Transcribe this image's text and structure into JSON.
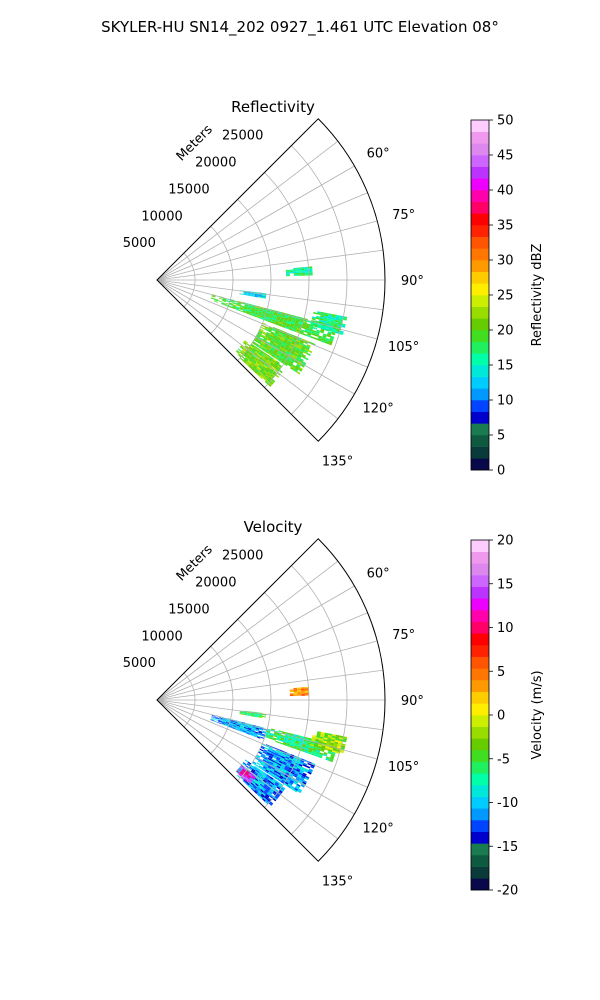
{
  "figure": {
    "suptitle": "SKYLER-HU  SN14_202  0927_1.461 UTC Elevation 08°"
  },
  "chart_data": [
    {
      "type": "heatmap",
      "projection": "polar-sector",
      "title": "Reflectivity",
      "range_label": "Meters",
      "range_ticks": [
        5000,
        10000,
        15000,
        20000,
        25000
      ],
      "range_tick_labels": [
        "5000",
        "10000",
        "15000",
        "20000",
        "25000"
      ],
      "rlim": [
        0,
        30000
      ],
      "azimuth_ticks": [
        60,
        75,
        90,
        105,
        120,
        135
      ],
      "azimuth_tick_labels": [
        "60°",
        "75°",
        "90°",
        "105°",
        "120°",
        "135°"
      ],
      "azimuth_range": [
        45,
        135
      ],
      "grid": true,
      "colorbar": {
        "label": "Reflectivity dBZ",
        "vmin": 0,
        "vmax": 50,
        "ticks": [
          0,
          5,
          10,
          15,
          20,
          25,
          30,
          35,
          40,
          45,
          50
        ],
        "tick_labels": [
          "0",
          "5",
          "10",
          "15",
          "20",
          "25",
          "30",
          "35",
          "40",
          "45",
          "50"
        ],
        "colors": [
          "#08084a",
          "#0a3a3a",
          "#0d5a40",
          "#1a7a50",
          "#0000cc",
          "#0044ff",
          "#0099ff",
          "#00ccff",
          "#00e8d8",
          "#00ffa8",
          "#20f060",
          "#40dd20",
          "#66cc00",
          "#99dd00",
          "#ccee00",
          "#ffee00",
          "#ffcc00",
          "#ff9900",
          "#ff7700",
          "#ff5500",
          "#ff2200",
          "#ff0000",
          "#ff0066",
          "#ff00aa",
          "#ee00ff",
          "#bb33ff",
          "#cc66ff",
          "#dd88ee",
          "#ee99ee",
          "#ffccff"
        ]
      },
      "echo_regions": [
        {
          "r_min": 17000,
          "r_max": 20500,
          "az_min": 85,
          "az_max": 88,
          "value": 16
        },
        {
          "r_min": 11000,
          "r_max": 14500,
          "az_min": 97,
          "az_max": 99.5,
          "value": 13
        },
        {
          "r_min": 7500,
          "r_max": 24500,
          "az_min": 104.5,
          "az_max": 110,
          "value": 19
        },
        {
          "r_min": 21000,
          "r_max": 25500,
          "az_min": 101,
          "az_max": 106,
          "value": 17
        },
        {
          "r_min": 15000,
          "r_max": 22500,
          "az_min": 112,
          "az_max": 123,
          "value": 20
        },
        {
          "r_min": 14000,
          "r_max": 20500,
          "az_min": 124,
          "az_max": 133,
          "value": 21
        }
      ]
    },
    {
      "type": "heatmap",
      "projection": "polar-sector",
      "title": "Velocity",
      "range_label": "Meters",
      "range_ticks": [
        5000,
        10000,
        15000,
        20000,
        25000
      ],
      "range_tick_labels": [
        "5000",
        "10000",
        "15000",
        "20000",
        "25000"
      ],
      "rlim": [
        0,
        30000
      ],
      "azimuth_ticks": [
        60,
        75,
        90,
        105,
        120,
        135
      ],
      "azimuth_tick_labels": [
        "60°",
        "75°",
        "90°",
        "105°",
        "120°",
        "135°"
      ],
      "azimuth_range": [
        45,
        135
      ],
      "grid": true,
      "colorbar": {
        "label": "Velocity (m/s)",
        "vmin": -20,
        "vmax": 20,
        "ticks": [
          -20,
          -15,
          -10,
          -5,
          0,
          5,
          10,
          15,
          20
        ],
        "tick_labels": [
          "-20",
          "-15",
          "-10",
          "-5",
          "0",
          "5",
          "10",
          "15",
          "20"
        ],
        "colors": [
          "#08084a",
          "#0a3a3a",
          "#0d5a40",
          "#1a7a50",
          "#0000cc",
          "#0044ff",
          "#0099ff",
          "#00ccff",
          "#00e8d8",
          "#00ffa8",
          "#20f060",
          "#40dd20",
          "#66cc00",
          "#99dd00",
          "#ccee00",
          "#ffee00",
          "#ffcc00",
          "#ff9900",
          "#ff7700",
          "#ff5500",
          "#ff2200",
          "#ff0000",
          "#ff0066",
          "#ff00aa",
          "#ee00ff",
          "#bb33ff",
          "#cc66ff",
          "#dd88ee",
          "#ee99ee",
          "#ffccff"
        ]
      },
      "echo_regions": [
        {
          "r_min": 17500,
          "r_max": 20000,
          "az_min": 85,
          "az_max": 88,
          "value": 4
        },
        {
          "r_min": 11000,
          "r_max": 14500,
          "az_min": 97,
          "az_max": 99.5,
          "value": -5
        },
        {
          "r_min": 7500,
          "r_max": 15000,
          "az_min": 104.5,
          "az_max": 110,
          "value": -11
        },
        {
          "r_min": 15000,
          "r_max": 24500,
          "az_min": 104,
          "az_max": 109,
          "value": -6
        },
        {
          "r_min": 21000,
          "r_max": 25500,
          "az_min": 101,
          "az_max": 106,
          "value": -2
        },
        {
          "r_min": 15000,
          "r_max": 22500,
          "az_min": 112,
          "az_max": 123,
          "value": -11
        },
        {
          "r_min": 14000,
          "r_max": 20500,
          "az_min": 124,
          "az_max": 133,
          "value": -11
        },
        {
          "r_min": 14000,
          "r_max": 16500,
          "az_min": 128,
          "az_max": 132,
          "value": 13
        }
      ]
    }
  ]
}
